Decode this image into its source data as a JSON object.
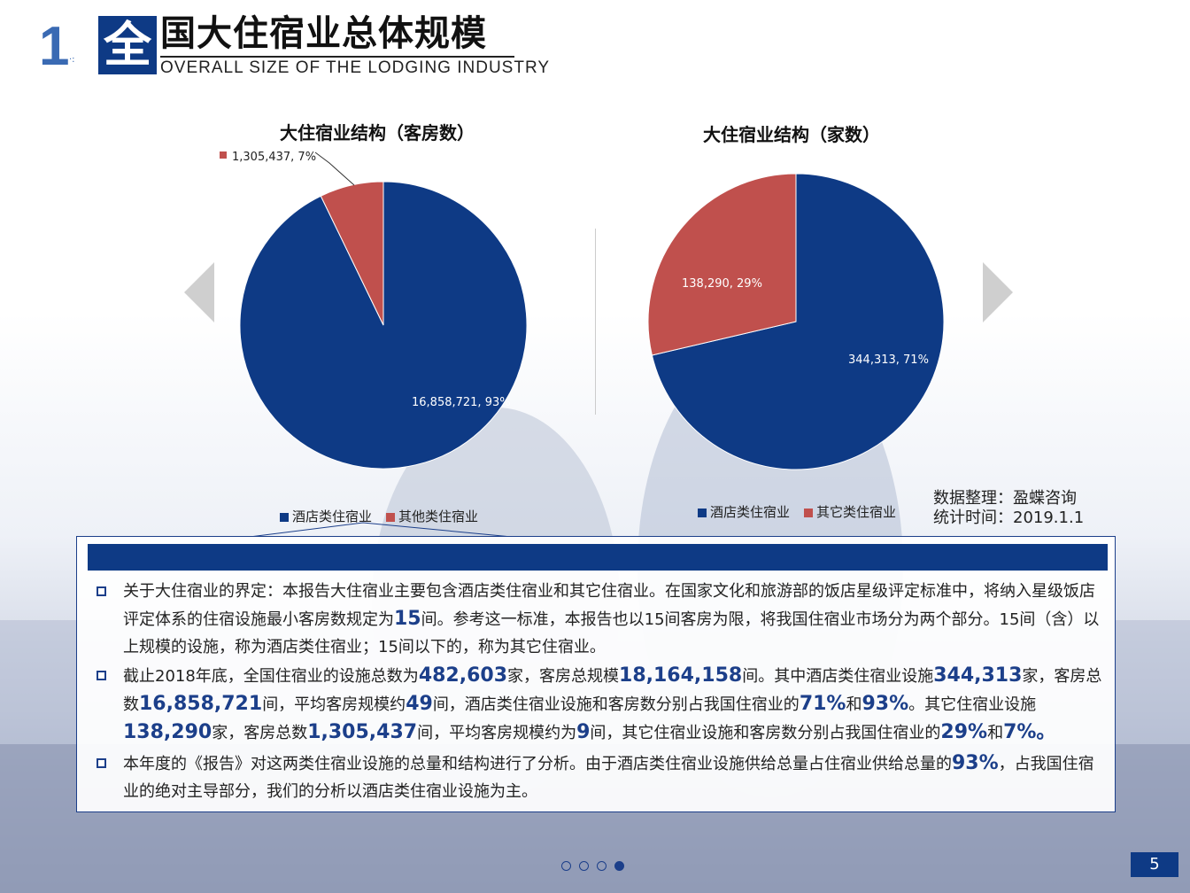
{
  "header": {
    "number": "1",
    "title_first_char": "全",
    "title_rest": "国大住宿业总体规模",
    "subtitle": "OVERALL SIZE OF THE LODGING INDUSTRY"
  },
  "colors": {
    "navy": "#0e3a85",
    "red": "#c0504d"
  },
  "chart_data": [
    {
      "type": "pie",
      "title": "大住宿业结构（客房数）",
      "categories": [
        "酒店类住宿业",
        "其他类住宿业"
      ],
      "values": [
        16858721,
        1305437
      ],
      "percents": [
        93,
        7
      ],
      "labels": [
        "16,858,721, 93%",
        "1,305,437, 7%"
      ],
      "colors": [
        "#0e3a85",
        "#c0504d"
      ]
    },
    {
      "type": "pie",
      "title": "大住宿业结构（家数）",
      "categories": [
        "酒店类住宿业",
        "其它类住宿业"
      ],
      "values": [
        344313,
        138290
      ],
      "percents": [
        71,
        29
      ],
      "labels": [
        "344,313, 71%",
        "138,290, 29%"
      ],
      "colors": [
        "#0e3a85",
        "#c0504d"
      ]
    }
  ],
  "source": {
    "line1": "数据整理：盈蝶咨询",
    "line2": "统计时间：2019.1.1"
  },
  "paragraphs": {
    "p1": {
      "a": "关于大住宿业的界定：本报告大住宿业主要包含酒店类住宿业和其它住宿业。在国家文化和旅游部的饭店星级评定标准中，将纳入星级饭店评定体系的住宿设施最小客房数规定为",
      "h1": "15",
      "b": "间。参考这一标准，本报告也以15间客房为限，将我国住宿业市场分为两个部分。15间（含）以上规模的设施，称为酒店类住宿业；15间以下的，称为其它住宿业。"
    },
    "p2": {
      "a": "截止2018年底，全国住宿业的设施总数为",
      "h1": "482,603",
      "b": "家，客房总规模",
      "h2": "18,164,158",
      "c": "间。其中酒店类住宿业设施",
      "h3": "344,313",
      "d": "家，客房总数",
      "h4": "16,858,721",
      "e": "间，平均客房规模约",
      "h5": "49",
      "f": "间，酒店类住宿业设施和客房数分别占我国住宿业的",
      "h6": "71%",
      "g": "和",
      "h7": "93%",
      "h": "。其它住宿业设施",
      "h8": "138,290",
      "i": "家，客房总数",
      "h9": "1,305,437",
      "j": "间，平均客房规模约为",
      "h10": "9",
      "k": "间，其它住宿业设施和客房数分别占我国住宿业的",
      "h11": "29%",
      "l": "和",
      "h12": "7%。"
    },
    "p3": {
      "a": "本年度的《报告》对这两类住宿业设施的总量和结构进行了分析。由于酒店类住宿业设施供给总量占住宿业供给总量的",
      "h1": "93%",
      "b": "，占我国住宿业的绝对主导部分，我们的分析以酒店类住宿业设施为主。"
    }
  },
  "footer": {
    "page_number": "5",
    "pager_total": 4,
    "pager_active": 4
  }
}
